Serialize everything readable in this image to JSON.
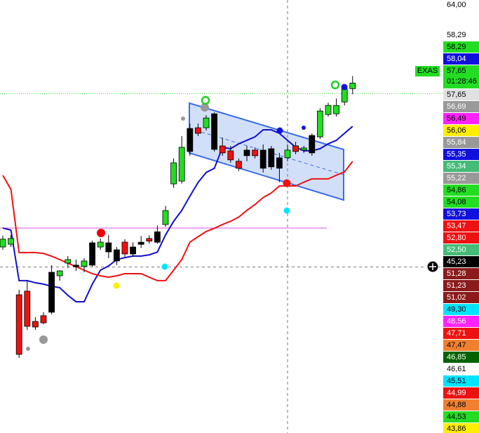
{
  "chart_data": {
    "type": "candlestick",
    "ylim": [
      33.34,
      64.35
    ],
    "yticks": [
      {
        "value": 64,
        "label": "64,00"
      }
    ],
    "open": [
      46.66,
      46.86,
      43.24,
      43.5,
      41.33,
      41.74,
      41.99,
      44.6,
      45.51,
      45.36,
      45.26,
      45.36,
      46.66,
      46.96,
      46.46,
      47.01,
      46.66,
      47.0,
      47.27,
      47.0,
      48.27,
      51.18,
      51.38,
      53.5,
      55.2,
      55.2,
      53.65,
      53.9,
      53.55,
      52.8,
      53.2,
      53.6,
      52.3,
      53.7,
      52.3,
      53.05,
      53.5,
      53.6,
      53.4,
      54.55,
      56.15,
      56.2,
      57.05,
      58.0
    ],
    "high": [
      47.47,
      47.52,
      43.6,
      44.25,
      41.64,
      41.99,
      45.36,
      45.0,
      46.01,
      45.76,
      45.86,
      47.12,
      47.27,
      47.52,
      46.66,
      47.22,
      47.0,
      47.45,
      47.5,
      48.2,
      49.6,
      53.0,
      54.6,
      55.5,
      55.5,
      56.1,
      56.3,
      54.5,
      53.9,
      53.0,
      53.9,
      53.8,
      54.0,
      53.9,
      53.4,
      54.0,
      54.2,
      53.9,
      54.8,
      56.6,
      57.0,
      57.3,
      58.3,
      58.9
    ],
    "low": [
      46.46,
      46.66,
      38.72,
      40.73,
      40.73,
      41.13,
      41.84,
      44.25,
      45.16,
      44.95,
      44.85,
      45.26,
      46.46,
      45.86,
      45.36,
      45.96,
      45.96,
      46.6,
      46.9,
      46.9,
      48.1,
      50.9,
      51.2,
      53.2,
      54.6,
      55.0,
      53.5,
      53.2,
      52.7,
      52.1,
      52.8,
      53.0,
      52.0,
      52.2,
      51.3,
      52.8,
      53.3,
      53.4,
      53.2,
      54.4,
      56.0,
      56.0,
      56.8,
      57.6
    ],
    "close": [
      47.22,
      47.27,
      38.97,
      40.98,
      40.93,
      41.23,
      44.85,
      44.95,
      45.76,
      45.26,
      45.66,
      46.96,
      47.01,
      46.31,
      45.66,
      46.16,
      46.16,
      46.85,
      47.08,
      47.75,
      49.27,
      52.69,
      53.8,
      55.15,
      54.8,
      55.9,
      56.2,
      53.4,
      52.9,
      52.3,
      53.6,
      53.2,
      53.6,
      52.4,
      53.05,
      53.6,
      53.9,
      53.75,
      54.65,
      56.4,
      56.8,
      56.8,
      58.0,
      58.4
    ],
    "colors": [
      "#22dd22",
      "#22dd22",
      "#ee1111",
      "#ee1111",
      "#ee1111",
      "#ee1111",
      "#000000",
      "#22dd22",
      "#22dd22",
      "#000000",
      "#22dd22",
      "#000000",
      "#22dd22",
      "#000000",
      "#000000",
      "#ee1111",
      "#000000",
      "#000000",
      "#ee1111",
      "#000000",
      "#22dd22",
      "#22dd22",
      "#22dd22",
      "#000000",
      "#ee1111",
      "#22dd22",
      "#000000",
      "#ee1111",
      "#ee1111",
      "#ee1111",
      "#000000",
      "#ee1111",
      "#000000",
      "#000000",
      "#000000",
      "#22dd22",
      "#ee1111",
      "#22dd22",
      "#000000",
      "#22dd22",
      "#22dd22",
      "#22dd22",
      "#22dd22",
      "#22dd22"
    ],
    "lines": [
      {
        "color": "#1010cc",
        "values": [
          48.02,
          47.87,
          44.25,
          44.25,
          44.1,
          44.0,
          43.85,
          43.75,
          43.2,
          42.74,
          42.74,
          44.0,
          45.0,
          45.3,
          45.76,
          45.9,
          46.01,
          46.01,
          46.1,
          46.3,
          47.52,
          48.5,
          49.28,
          50.3,
          51.28,
          52.0,
          52.29,
          53.8,
          53.7,
          54.05,
          54.3,
          54.55,
          55.05,
          55.05,
          54.8,
          54.3,
          53.8,
          53.55,
          53.55,
          53.7,
          54.05,
          54.3,
          54.8,
          55.3
        ]
      },
      {
        "color": "#ee1111",
        "values": [
          51.79,
          50.78,
          46.26,
          46.26,
          46.26,
          46.2,
          46.0,
          45.76,
          45.5,
          45.26,
          45.0,
          44.75,
          44.6,
          44.5,
          44.6,
          44.75,
          44.75,
          44.75,
          44.5,
          44.25,
          44.25,
          45.0,
          45.76,
          47.01,
          47.4,
          47.77,
          48.0,
          48.27,
          48.5,
          48.8,
          49.28,
          49.7,
          50.2,
          50.53,
          51.03,
          51.03,
          51.03,
          51.3,
          51.54,
          51.54,
          51.54,
          51.8,
          52.04,
          52.79
        ]
      }
    ],
    "price_labels": [
      {
        "label": "58,29",
        "bg": "#ffffff",
        "fg": "#000000"
      },
      {
        "label": "58,29",
        "bg": "#22dd22",
        "fg": "#000000"
      },
      {
        "label": "58,04",
        "bg": "#1010dd",
        "fg": "#ffffff"
      },
      {
        "tag": "EXAS",
        "label": "57,65",
        "sub": "01:28:46",
        "value": 57.65,
        "line": "dotted",
        "bg": "#22dd22",
        "fg": "#000000"
      },
      {
        "label": "57,65",
        "bg": "#e0e0e0",
        "fg": "#000000"
      },
      {
        "label": "56,69",
        "bg": "#999999",
        "fg": "#ffffff"
      },
      {
        "label": "56,49",
        "bg": "#ff22ff",
        "fg": "#000000"
      },
      {
        "label": "56,06",
        "bg": "#ffee00",
        "fg": "#000000"
      },
      {
        "label": "55,84",
        "bg": "#999999",
        "fg": "#ffffff"
      },
      {
        "label": "55,35",
        "bg": "#1010dd",
        "fg": "#ffffff"
      },
      {
        "label": "55,34",
        "bg": "#44bb77",
        "fg": "#ffffff"
      },
      {
        "label": "55,22",
        "bg": "#999999",
        "fg": "#ffffff"
      },
      {
        "label": "54,86",
        "bg": "#22dd22",
        "fg": "#000000"
      },
      {
        "label": "54,08",
        "bg": "#22dd22",
        "fg": "#000000"
      },
      {
        "label": "53,73",
        "bg": "#1010dd",
        "fg": "#ffffff"
      },
      {
        "label": "53,47",
        "bg": "#ee1111",
        "fg": "#ffffff"
      },
      {
        "label": "52,80",
        "bg": "#ee1111",
        "fg": "#ffffff"
      },
      {
        "label": "52,50",
        "bg": "#44bb77",
        "fg": "#ffffff"
      },
      {
        "label": "45,23",
        "value": 45.23,
        "line": "dashed",
        "bg": "#000000",
        "fg": "#ffffff"
      },
      {
        "label": "51,28",
        "bg": "#8b1a1a",
        "fg": "#ffffff"
      },
      {
        "label": "51,23",
        "bg": "#8b1a1a",
        "fg": "#ffffff"
      },
      {
        "label": "51,02",
        "bg": "#8b1a1a",
        "fg": "#ffffff"
      },
      {
        "label": "49,30",
        "bg": "#00e5ff",
        "fg": "#000000"
      },
      {
        "label": "48,56",
        "bg": "#ff22ff",
        "fg": "#ffffff"
      },
      {
        "label": "47,71",
        "bg": "#ee1111",
        "fg": "#ffffff"
      },
      {
        "label": "47,47",
        "bg": "#f08030",
        "fg": "#000000"
      },
      {
        "label": "46,85",
        "bg": "#006400",
        "fg": "#ffffff"
      },
      {
        "label": "46,61",
        "bg": "#ffffff",
        "fg": "#000000"
      },
      {
        "label": "45,51",
        "bg": "#00e5ff",
        "fg": "#000000"
      },
      {
        "label": "44,99",
        "bg": "#ee1111",
        "fg": "#ffffff"
      },
      {
        "label": "44,88",
        "bg": "#f08030",
        "fg": "#000000"
      },
      {
        "label": "44,53",
        "bg": "#22dd22",
        "fg": "#000000"
      },
      {
        "label": "43,86",
        "bg": "#ffee00",
        "fg": "#000000"
      }
    ]
  }
}
